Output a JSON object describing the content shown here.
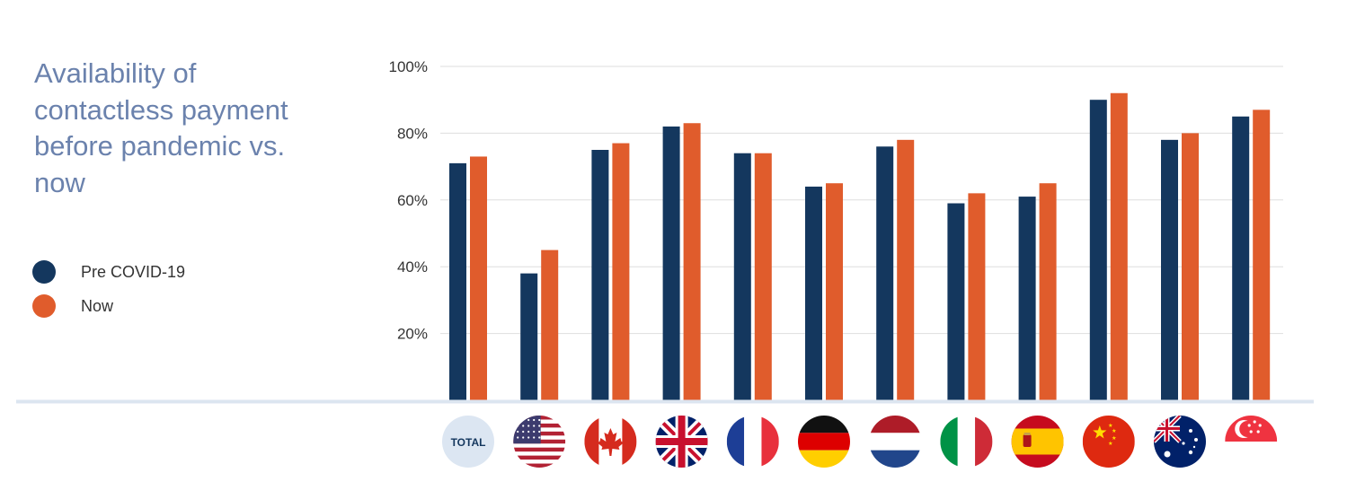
{
  "chart_data": {
    "type": "bar",
    "title": "Availability of contactless payment before pandemic vs. now",
    "xlabel": "",
    "ylabel": "",
    "ylim": [
      0,
      100
    ],
    "yticks": [
      "20%",
      "40%",
      "60%",
      "80%",
      "100%"
    ],
    "grid": true,
    "legend_position": "left",
    "categories": [
      "TOTAL",
      "United States",
      "Canada",
      "United Kingdom",
      "France",
      "Germany",
      "Netherlands",
      "Italy",
      "Spain",
      "China",
      "Australia",
      "Singapore"
    ],
    "category_icons": [
      "total-badge-icon",
      "us-flag-icon",
      "canada-flag-icon",
      "uk-flag-icon",
      "france-flag-icon",
      "germany-flag-icon",
      "netherlands-flag-icon",
      "italy-flag-icon",
      "spain-flag-icon",
      "china-flag-icon",
      "australia-flag-icon",
      "singapore-flag-icon"
    ],
    "total_badge_text": "TOTAL",
    "series": [
      {
        "name": "Pre COVID-19",
        "color": "#14375e",
        "values": [
          71,
          38,
          75,
          82,
          74,
          64,
          76,
          59,
          61,
          90,
          78,
          85
        ]
      },
      {
        "name": "Now",
        "color": "#e05c2c",
        "values": [
          73,
          45,
          77,
          83,
          74,
          65,
          78,
          62,
          65,
          92,
          80,
          87
        ]
      }
    ]
  }
}
